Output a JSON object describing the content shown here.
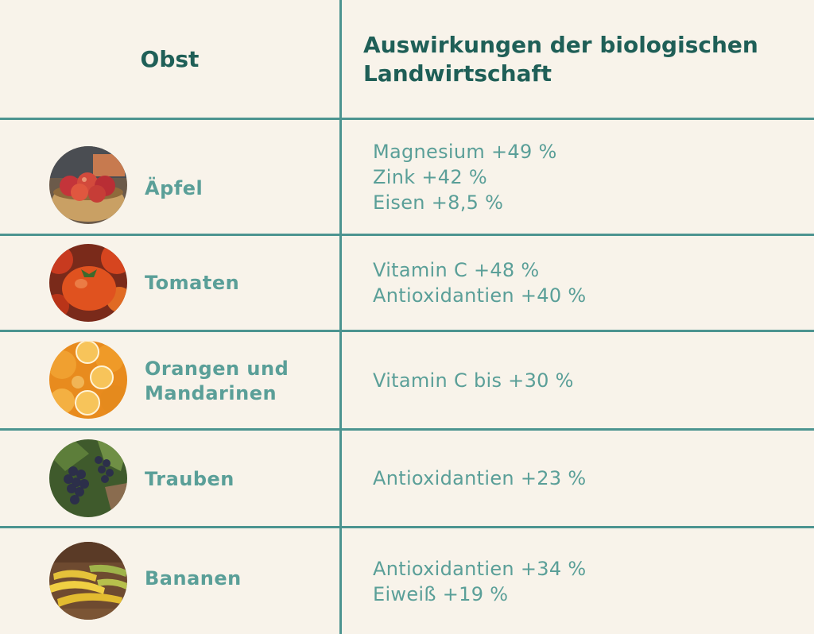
{
  "chart_data": {
    "type": "table",
    "columns": [
      "Obst",
      "Auswirkungen der biologischen Landwirtschaft"
    ],
    "rows": [
      {
        "fruit": "Äpfel",
        "photo": "apples-in-bowl-image",
        "effects": [
          "Magnesium +49 %",
          "Zink +42 %",
          "Eisen +8,5 %"
        ]
      },
      {
        "fruit": "Tomaten",
        "photo": "tomatoes-image",
        "effects": [
          "Vitamin C +48 %",
          "Antioxidantien +40 %"
        ]
      },
      {
        "fruit": "Orangen und Mandarinen",
        "photo": "oranges-image",
        "effects": [
          "Vitamin C bis +30 %"
        ]
      },
      {
        "fruit": "Trauben",
        "photo": "grapes-image",
        "effects": [
          "Antioxidantien +23 %"
        ]
      },
      {
        "fruit": "Bananen",
        "photo": "bananas-image",
        "effects": [
          "Antioxidantien +34 %",
          "Eiweiß +19 %"
        ]
      }
    ]
  },
  "colors": {
    "background": "#f8f3ea",
    "grid": "#4c9490",
    "header_text": "#1f5f57",
    "body_text": "#5a9f98"
  }
}
